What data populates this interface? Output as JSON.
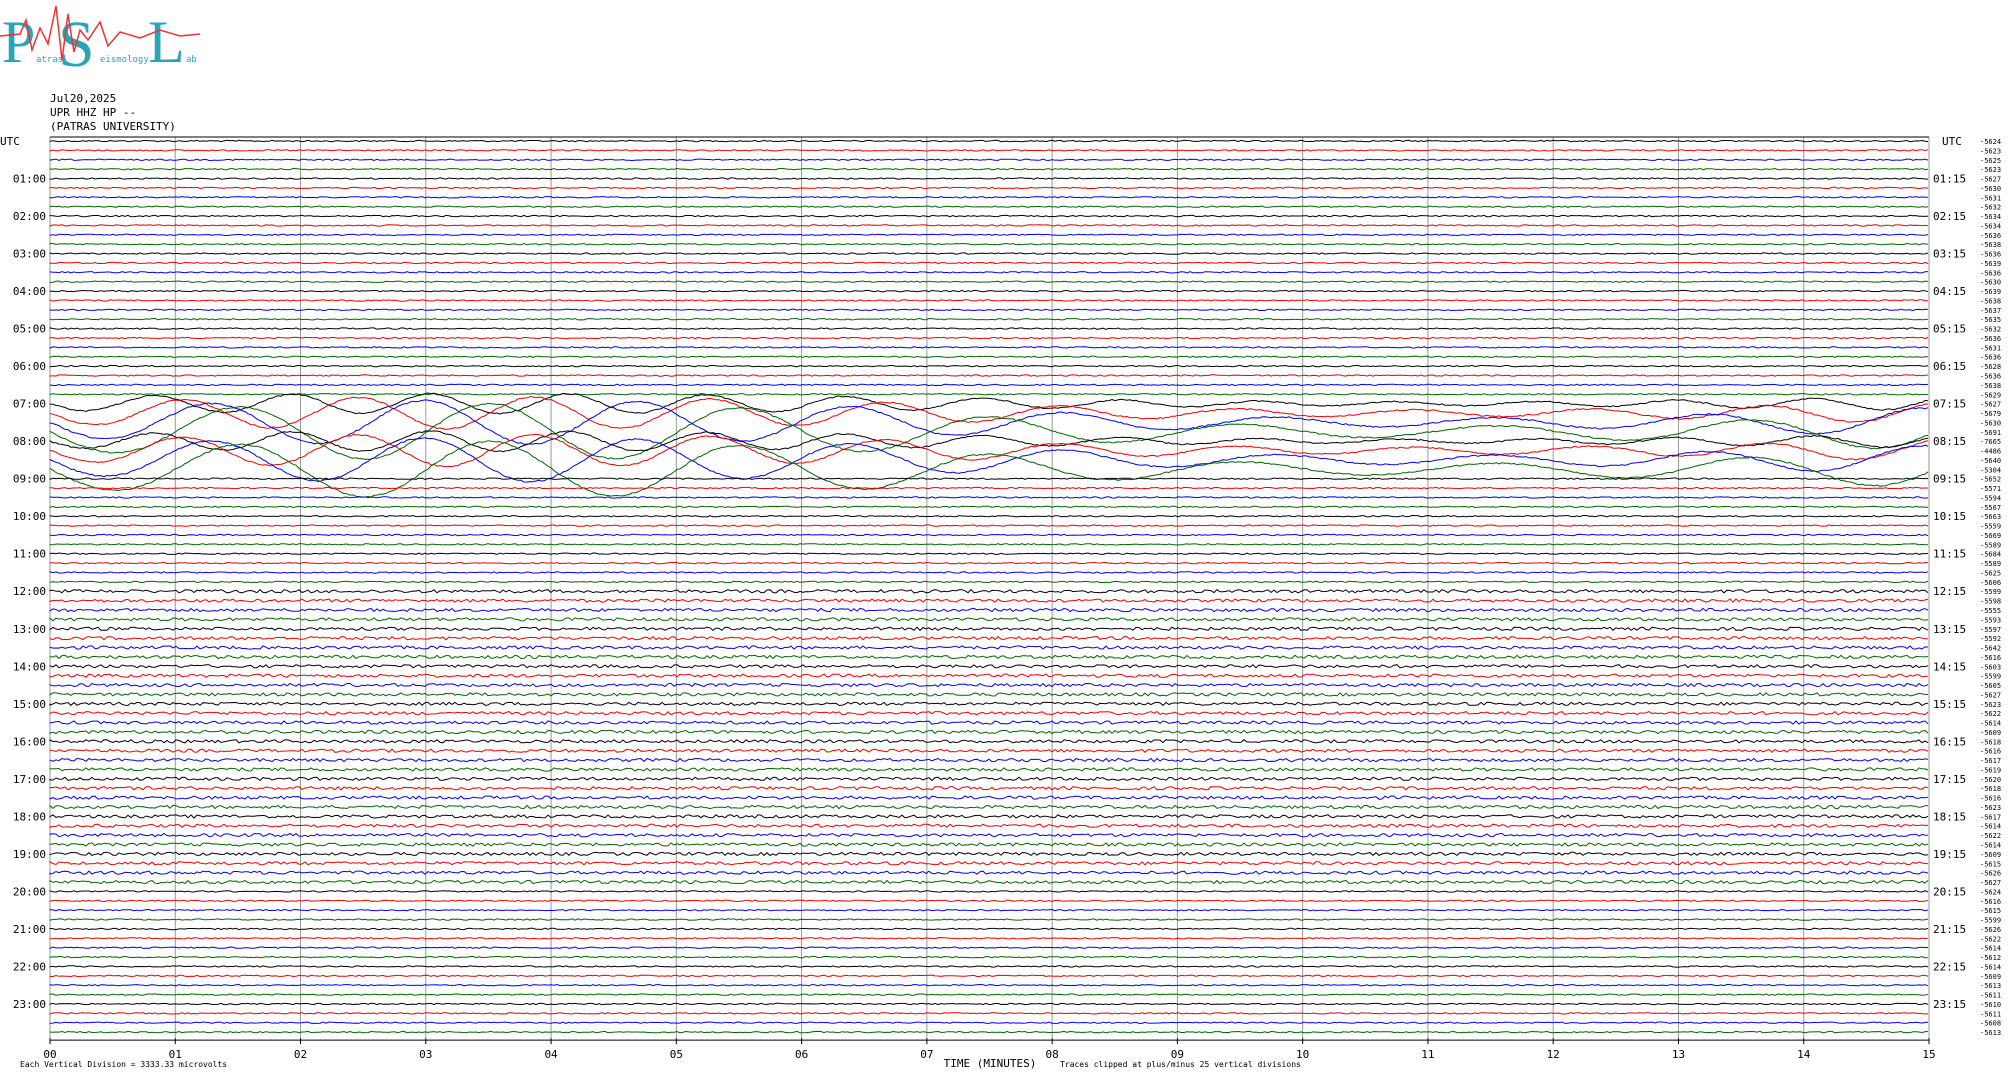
{
  "logo": {
    "letters": [
      "P",
      "S",
      "L"
    ],
    "words": [
      "atras",
      "eismology",
      "ab"
    ]
  },
  "header": {
    "date": "Jul20,2025",
    "station": "UPR HHZ HP --",
    "institution": "(PATRAS UNIVERSITY)"
  },
  "axis": {
    "utc_left": "UTC",
    "utc_right": "UTC",
    "left_labels": [
      "01:00",
      "02:00",
      "03:00",
      "04:00",
      "05:00",
      "06:00",
      "07:00",
      "08:00",
      "09:00",
      "10:00",
      "11:00",
      "12:00",
      "13:00",
      "14:00",
      "15:00",
      "16:00",
      "17:00",
      "18:00",
      "19:00",
      "20:00",
      "21:00",
      "22:00",
      "23:00"
    ],
    "right_labels": [
      "01:15",
      "02:15",
      "03:15",
      "04:15",
      "05:15",
      "06:15",
      "07:15",
      "08:15",
      "09:15",
      "10:15",
      "11:15",
      "12:15",
      "13:15",
      "14:15",
      "15:15",
      "16:15",
      "17:15",
      "18:15",
      "19:15",
      "20:15",
      "21:15",
      "22:15",
      "23:15"
    ],
    "trace_offsets": [
      "-5624",
      "-5623",
      "-5625",
      "-5623",
      "-5627",
      "-5630",
      "-5631",
      "-5632",
      "-5634",
      "-5634",
      "-5636",
      "-5638",
      "-5636",
      "-5639",
      "-5636",
      "-5630",
      "-5639",
      "-5638",
      "-5637",
      "-5635",
      "-5632",
      "-5636",
      "-5631",
      "-5636",
      "-5628",
      "-5636",
      "-5638",
      "-5629",
      "-5627",
      "-5679",
      "-5630",
      "-5691",
      "-7665",
      "-4486",
      "-5640",
      "-5304",
      "-5652",
      "-5571",
      "-5594",
      "-5567",
      "-5663",
      "-5559",
      "-5669",
      "-5589",
      "-5684",
      "-5589",
      "-5625",
      "-5606",
      "-5599",
      "-5598",
      "-5555",
      "-5593",
      "-5597",
      "-5592",
      "-5642",
      "-5616",
      "-5603",
      "-5599",
      "-5605",
      "-5627",
      "-5623",
      "-5622",
      "-5614",
      "-5609",
      "-5618",
      "-5616",
      "-5617",
      "-5619",
      "-5620",
      "-5618",
      "-5616",
      "-5623",
      "-5617",
      "-5614",
      "-5622",
      "-5614",
      "-5609",
      "-5615",
      "-5626",
      "-5627",
      "-5624",
      "-5616",
      "-5615",
      "-5599",
      "-5626",
      "-5622",
      "-5614",
      "-5612",
      "-5614",
      "-5609",
      "-5613",
      "-5611",
      "-5610",
      "-5611",
      "-5608",
      "-5613"
    ],
    "x_ticks": [
      "00",
      "01",
      "02",
      "03",
      "04",
      "05",
      "06",
      "07",
      "08",
      "09",
      "10",
      "11",
      "12",
      "13",
      "14",
      "15"
    ],
    "x_title": "TIME (MINUTES)",
    "clip_note": "Traces clipped at plus/minus 25 vertical divisions",
    "scale_note": "Each Vertical Division = 3333.33 microvolts"
  }
}
